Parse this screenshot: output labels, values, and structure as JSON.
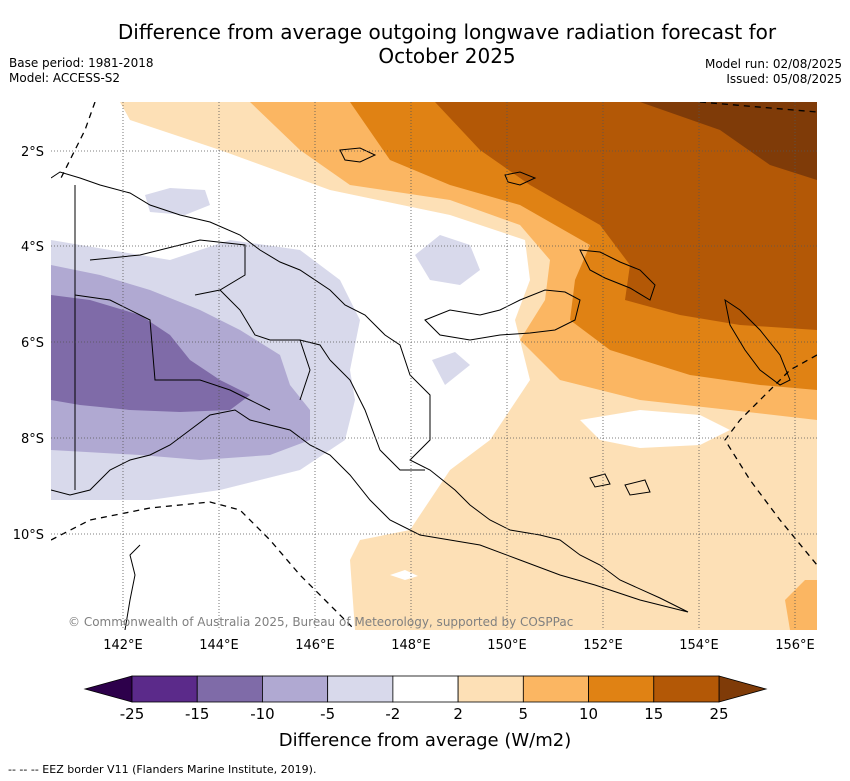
{
  "title_line1": "Difference from average outgoing longwave radiation forecast for",
  "title_line2": "October 2025",
  "base_period": "Base period: 1981-2018",
  "model": "Model: ACCESS-S2",
  "model_run": "Model run: 02/08/2025",
  "issued": "Issued: 05/08/2025",
  "copyright": "© Commonwealth of Australia 2025, Bureau of Meteorology, supported by COSPPac",
  "latitude_labels": [
    "2°S",
    "4°S",
    "6°S",
    "8°S",
    "10°S"
  ],
  "longitude_labels": [
    "142°E",
    "144°E",
    "146°E",
    "148°E",
    "150°E",
    "152°E",
    "154°E",
    "156°E"
  ],
  "colorbar": {
    "title": "Difference from average (W/m2)",
    "labels": [
      "-25",
      "-15",
      "-10",
      "-5",
      "-2",
      "2",
      "5",
      "10",
      "15",
      "25"
    ],
    "colors": [
      "#5b2a8a",
      "#7f6ba8",
      "#b0a9d2",
      "#d8d9eb",
      "#ffffff",
      "#fde0b6",
      "#fbb662",
      "#e08214",
      "#b35806"
    ],
    "extend_low_color": "#2d004b",
    "extend_high_color": "#7f3b08"
  },
  "footer": "--  --  -- EEZ border V11 (Flanders Marine Institute, 2019)."
}
